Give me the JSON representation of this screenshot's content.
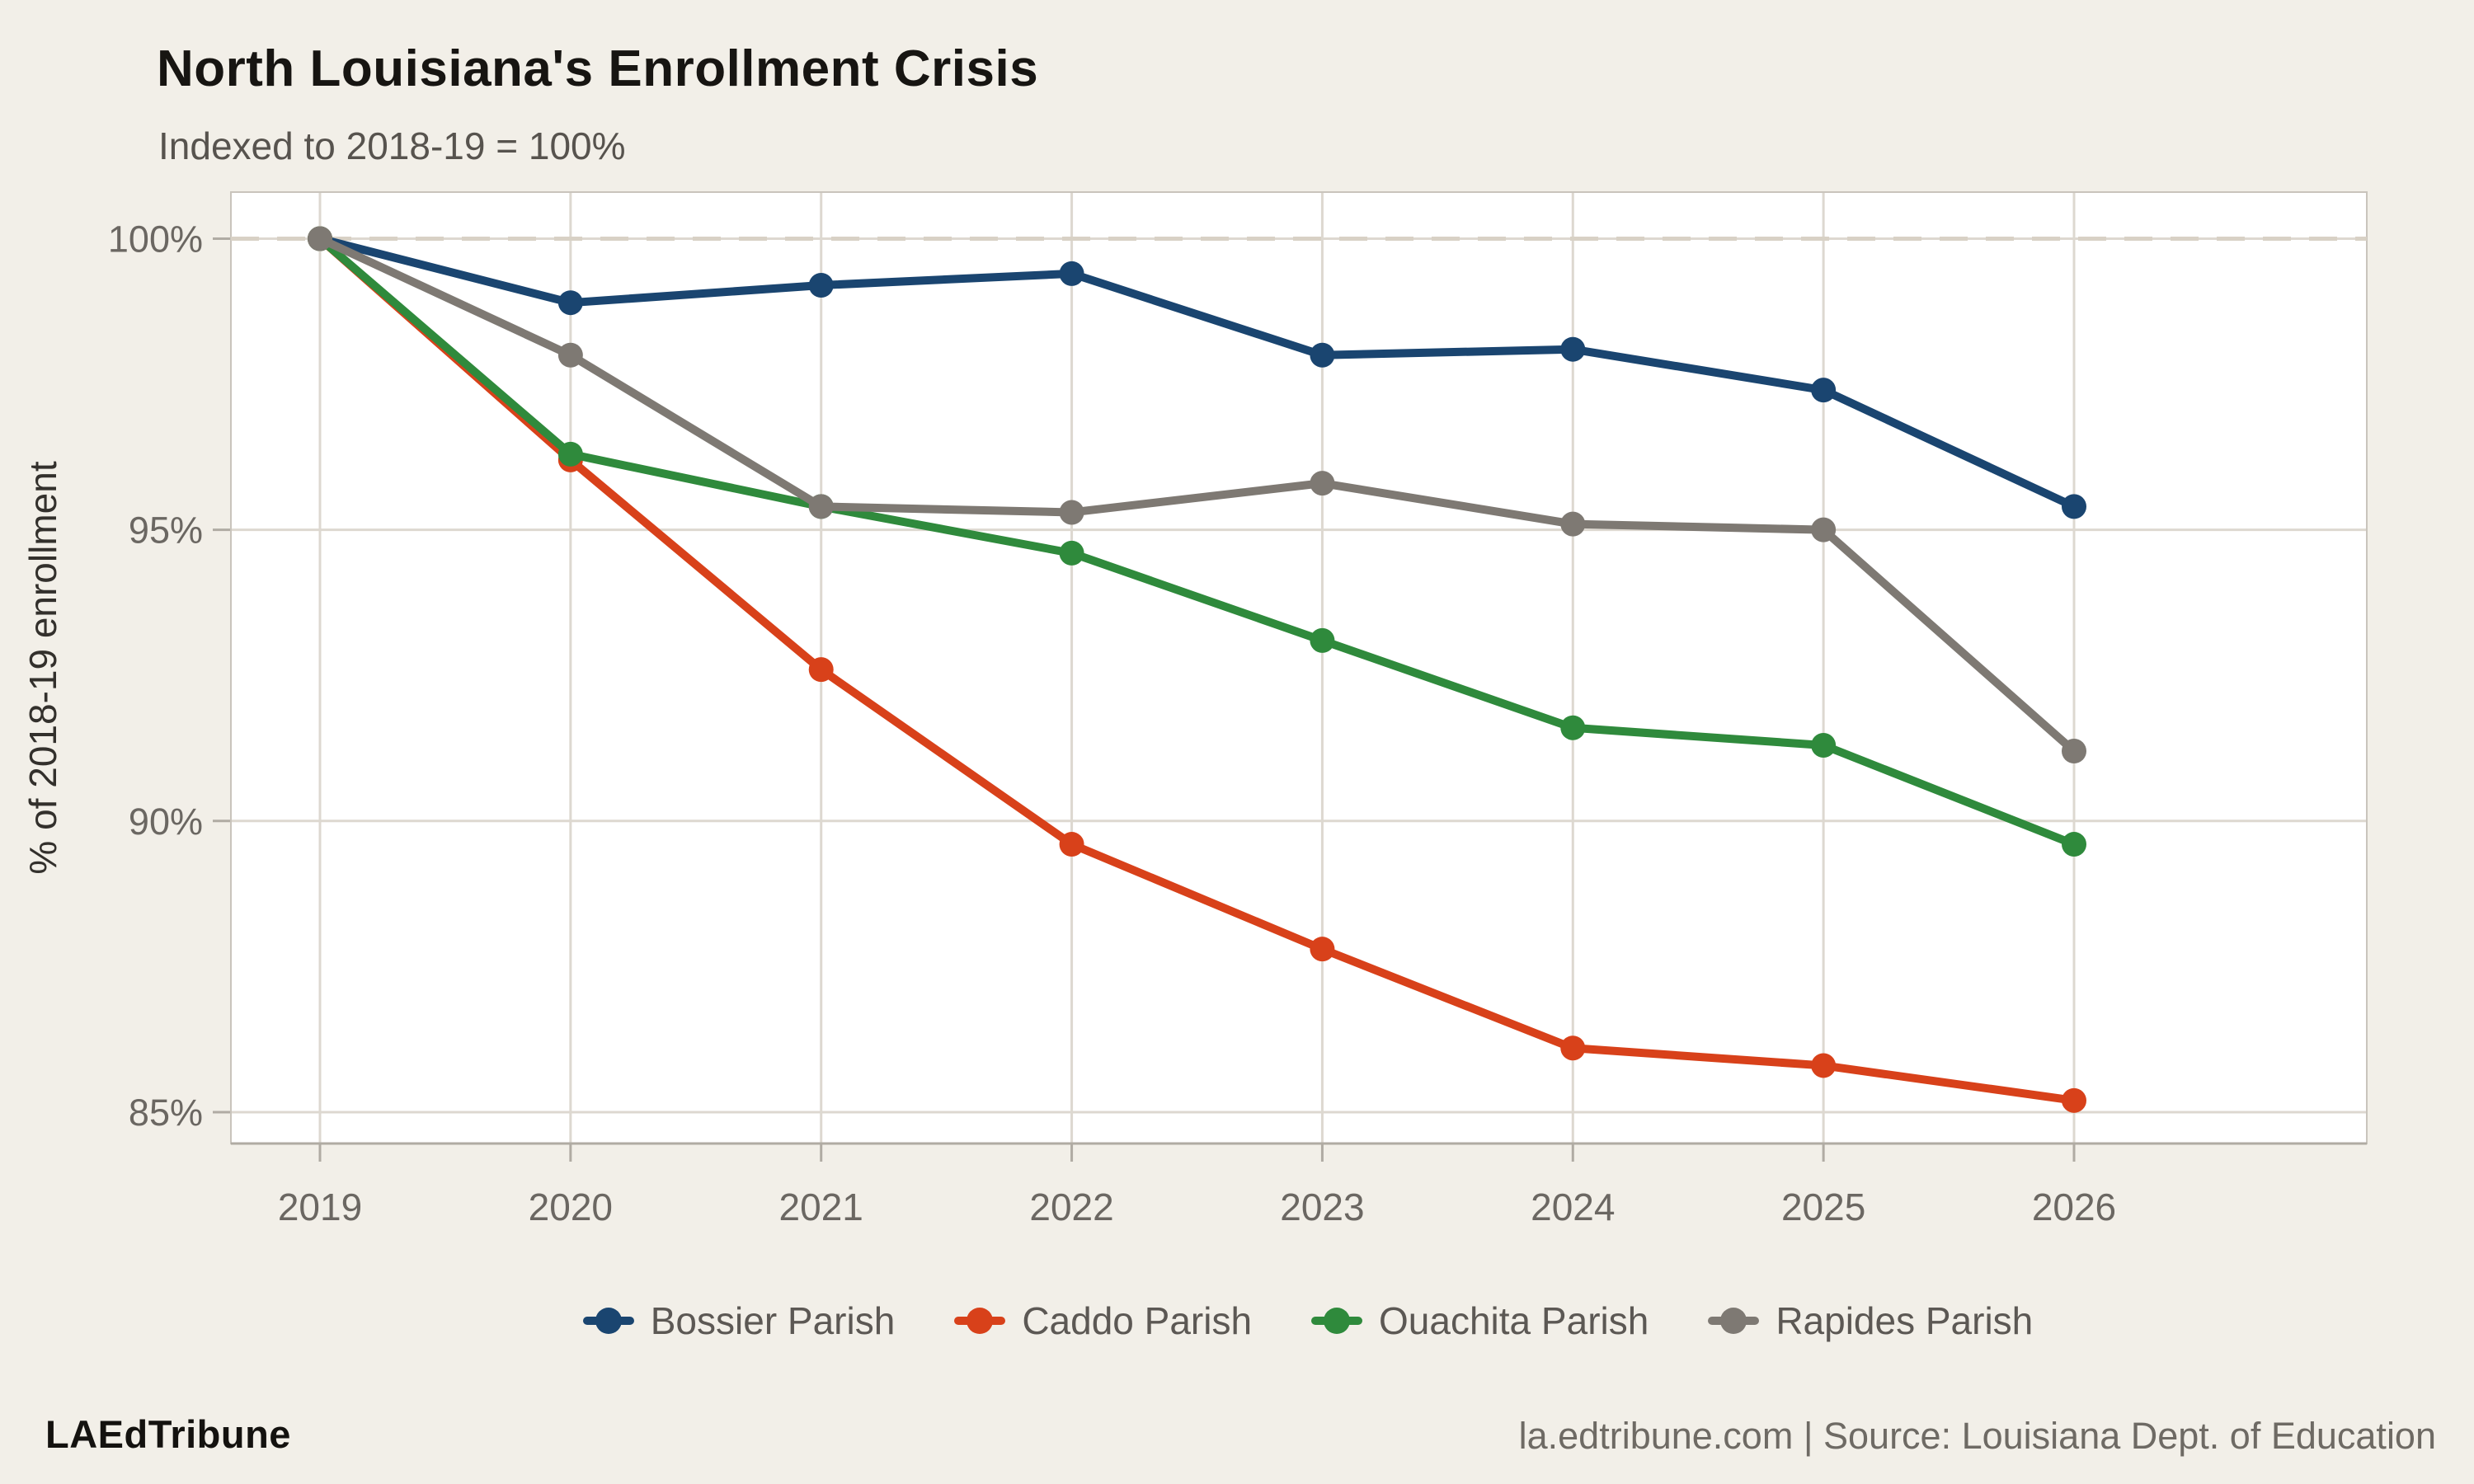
{
  "header": {
    "title": "North Louisiana's Enrollment Crisis",
    "subtitle": "Indexed to 2018-19 = 100%"
  },
  "footer": {
    "brand": "LAEdTribune",
    "source": "la.edtribune.com | Source: Louisiana Dept. of Education"
  },
  "colors": {
    "page_bg": "#f2efe8",
    "plot_bg": "#ffffff",
    "gridline": "#ddd8d0",
    "panel_border": "#c9c4bc",
    "axis_line": "#b0aba3",
    "reference_dash": "#d8d1c5",
    "tick_label": "#6b6762",
    "axis_title": "#33302c"
  },
  "chart_data": {
    "type": "line",
    "title": "North Louisiana's Enrollment Crisis",
    "subtitle": "Indexed to 2018-19 = 100%",
    "x": [
      2019,
      2020,
      2021,
      2022,
      2023,
      2024,
      2025,
      2026
    ],
    "x_tick_labels": [
      "2019",
      "2020",
      "2021",
      "2022",
      "2023",
      "2024",
      "2025",
      "2026"
    ],
    "series": [
      {
        "name": "Bossier Parish",
        "color": "#1a4570",
        "values": [
          100,
          98.9,
          99.2,
          99.4,
          98.0,
          98.1,
          97.4,
          95.4
        ]
      },
      {
        "name": "Caddo Parish",
        "color": "#d8411a",
        "values": [
          100,
          96.2,
          92.6,
          89.6,
          87.8,
          86.1,
          85.8,
          85.2
        ]
      },
      {
        "name": "Ouachita Parish",
        "color": "#2f8a3c",
        "values": [
          100,
          96.3,
          95.4,
          94.6,
          93.1,
          91.6,
          91.3,
          89.6
        ]
      },
      {
        "name": "Rapides Parish",
        "color": "#7e7973",
        "values": [
          100,
          98.0,
          95.4,
          95.3,
          95.8,
          95.1,
          95.0,
          91.2
        ]
      }
    ],
    "xlabel": "",
    "ylabel": "% of 2018-19 enrollment",
    "y_ticks": [
      100,
      95,
      90,
      85
    ],
    "y_tick_labels": [
      "100%",
      "95%",
      "90%",
      "85%"
    ],
    "ylim": [
      84.5,
      100.8
    ],
    "xlim": [
      2018.64,
      2027.17
    ],
    "reference_line_y": 100,
    "grid": true,
    "legend_position": "bottom"
  }
}
